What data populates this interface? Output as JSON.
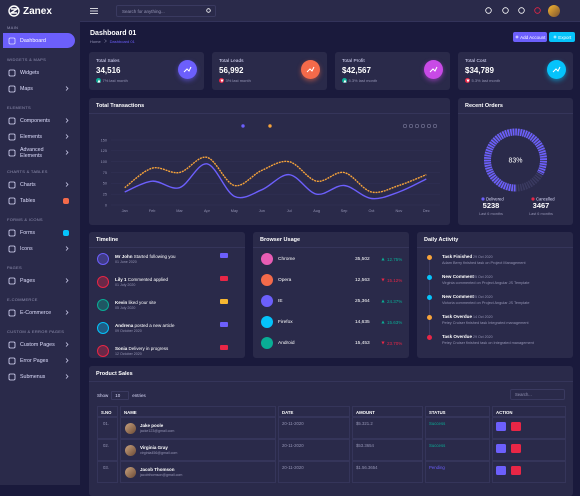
{
  "sidebar": {
    "brand": "Zanex",
    "sections": [
      {
        "title": "MAIN",
        "items": [
          {
            "label": "Dashboard",
            "active": true
          }
        ]
      },
      {
        "title": "WIDGETS & MAPS",
        "items": [
          {
            "label": "Widgets"
          },
          {
            "label": "Maps",
            "chevron": true
          }
        ]
      },
      {
        "title": "ELEMENTS",
        "items": [
          {
            "label": "Components",
            "chevron": true
          },
          {
            "label": "Elements",
            "chevron": true
          },
          {
            "label": "Advanced Elements",
            "chevron": true
          }
        ]
      },
      {
        "title": "CHARTS & TABLES",
        "items": [
          {
            "label": "Charts",
            "chevron": true
          },
          {
            "label": "Tables",
            "badge_color": "#f46a4a"
          }
        ]
      },
      {
        "title": "FORMS & ICONS",
        "items": [
          {
            "label": "Forms",
            "badge_color": "#05c3fb"
          },
          {
            "label": "Icons",
            "chevron": true
          }
        ]
      },
      {
        "title": "PAGES",
        "items": [
          {
            "label": "Pages",
            "chevron": true
          }
        ]
      },
      {
        "title": "E-COMMERCE",
        "items": [
          {
            "label": "E-Commerce",
            "chevron": true
          }
        ]
      },
      {
        "title": "CUSTOM & ERROR PAGES",
        "items": [
          {
            "label": "Custom Pages",
            "chevron": true
          },
          {
            "label": "Error Pages",
            "chevron": true
          },
          {
            "label": "Submenus",
            "chevron": true
          }
        ]
      }
    ]
  },
  "header": {
    "search_placeholder": "Search for anything..."
  },
  "page_header": {
    "title": "Dashboard 01",
    "breadcrumb": [
      "Home",
      "Dashboard 01"
    ],
    "buttons": [
      "Add Account",
      "Export"
    ]
  },
  "stats": [
    {
      "title": "Total Sales",
      "value": "34,516",
      "change": "7% last month",
      "trend": "up",
      "color": "#6c5ffc"
    },
    {
      "title": "Total Leads",
      "value": "56,992",
      "change": "3% last month",
      "trend": "down",
      "color": "#f46a4a"
    },
    {
      "title": "Total Profit",
      "value": "$42,567",
      "change": "5.3% last month",
      "trend": "up",
      "color": "#c84ae6"
    },
    {
      "title": "Total Cost",
      "value": "$34,789",
      "change": "5.3% last month",
      "trend": "down",
      "color": "#05c3fb"
    }
  ],
  "transactions": {
    "title": "Total Transactions",
    "chart": {
      "type": "line",
      "categories": [
        "Jan",
        "Feb",
        "Mar",
        "Apr",
        "May",
        "Jun",
        "Jul",
        "Aug",
        "Sep",
        "Oct",
        "Nov",
        "Dec"
      ],
      "series": [
        {
          "color": "#6c5ffc",
          "values": [
            30,
            55,
            40,
            95,
            20,
            35,
            70,
            25,
            45,
            15,
            30,
            60
          ]
        },
        {
          "color": "#f7a33a",
          "values": [
            40,
            85,
            75,
            110,
            45,
            80,
            100,
            55,
            75,
            30,
            45,
            70
          ]
        }
      ],
      "ylim": [
        0,
        150
      ],
      "yticks": [
        0,
        25,
        50,
        75,
        100,
        125,
        150
      ],
      "grid": true
    }
  },
  "recent_orders": {
    "title": "Recent Orders",
    "gauge": {
      "value": 83,
      "label": "83%"
    },
    "legend": [
      {
        "name": "Delivered",
        "value": "5238",
        "period": "Last 6 months",
        "color": "#6c5ffc"
      },
      {
        "name": "Cancelled",
        "value": "3467",
        "period": "Last 6 months",
        "color": "#e82646"
      }
    ]
  },
  "timeline": {
    "title": "Timeline",
    "items": [
      {
        "name": "Mr John",
        "text": "Started following you",
        "date": "01 June 2020",
        "color": "#6c5ffc",
        "badge_color": "#6c5ffc"
      },
      {
        "name": "Lily 1",
        "text": "Commented applied",
        "date": "01 July 2020",
        "color": "#e82646",
        "badge_color": "#e82646"
      },
      {
        "name": "Kevin",
        "text": "liked your site",
        "date": "05 July 2020",
        "color": "#09ad95",
        "badge_color": "#f7b731"
      },
      {
        "name": "Andrena",
        "text": "posted a new article",
        "date": "09 October 2020",
        "color": "#05c3fb",
        "badge_color": "#6c5ffc"
      },
      {
        "name": "Sonia",
        "text": "Delivery in progress",
        "date": "12 October 2020",
        "color": "#e82646",
        "badge_color": "#e82646"
      }
    ]
  },
  "browser_usage": {
    "title": "Browser Usage",
    "rows": [
      {
        "name": "Chrome",
        "count": "35,502",
        "percent": "12.75%",
        "trend": "up",
        "color": "#e85db4"
      },
      {
        "name": "Opera",
        "count": "12,563",
        "percent": "15.12%",
        "trend": "down",
        "color": "#f46a4a"
      },
      {
        "name": "IE",
        "count": "25,364",
        "percent": "24.37%",
        "trend": "up",
        "color": "#6c5ffc"
      },
      {
        "name": "Firefox",
        "count": "14,635",
        "percent": "15.63%",
        "trend": "up",
        "color": "#05c3fb"
      },
      {
        "name": "Android",
        "count": "15,453",
        "percent": "23.70%",
        "trend": "down",
        "color": "#09ad95"
      }
    ]
  },
  "daily_activity": {
    "title": "Daily Activity",
    "items": [
      {
        "title": "Task Finished",
        "date": "29 Oct 2020",
        "text": "Adam Berry finished task on Project Management",
        "color": "#f7a33a"
      },
      {
        "title": "New Comment",
        "date": "25 Oct 2020",
        "text": "Virginia commented on Project Angular JS Template",
        "color": "#05c3fb"
      },
      {
        "title": "New Comment",
        "date": "25 Oct 2020",
        "text": "Victoria commented on Project Angular JS Template",
        "color": "#05c3fb"
      },
      {
        "title": "Task Overdue",
        "date": "14 Oct 2020",
        "text": "Petey Cruiser finished task Integrated management",
        "color": "#f7a33a"
      },
      {
        "title": "Task Overdue",
        "date": "29 Oct 2020",
        "text": "Petey Cruiser finished task on Integrated management",
        "color": "#e82646"
      }
    ]
  },
  "product_sales": {
    "title": "Product Sales",
    "show": "Show",
    "page_size": "10",
    "entries": "entries",
    "search_placeholder": "Search...",
    "columns": [
      "S.NO",
      "NAME",
      "DATE",
      "AMOUNT",
      "STATUS",
      "ACTION"
    ],
    "rows": [
      {
        "no": "01.",
        "name": "Jake poole",
        "email": "jacke123@gmail.com",
        "date": "20-11-2020",
        "amount": "$5.321.2",
        "status": "Success"
      },
      {
        "no": "02.",
        "name": "Virginia Gray",
        "email": "virginia456@gmail.com",
        "date": "20-11-2020",
        "amount": "$53.3654",
        "status": "Success"
      },
      {
        "no": "03.",
        "name": "Jacob Thomson",
        "email": "jacobthomson@gmail.com",
        "date": "20-11-2020",
        "amount": "$1.56.3654",
        "status": "Pending"
      }
    ]
  }
}
